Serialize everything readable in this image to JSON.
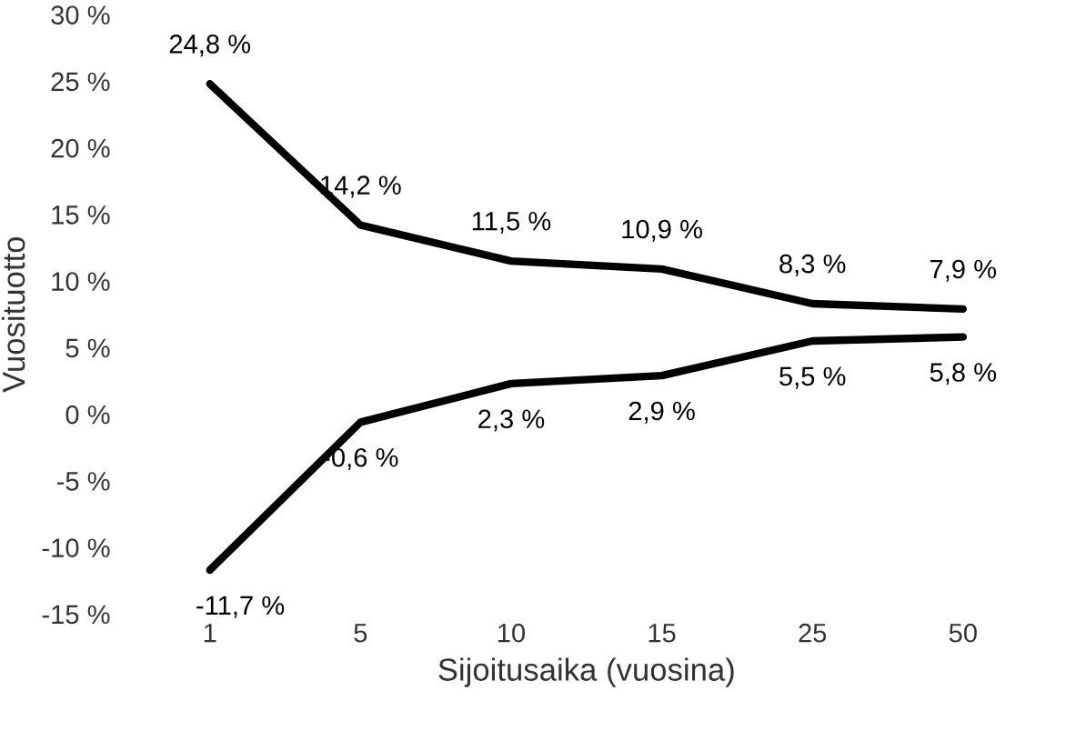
{
  "chart_data": {
    "type": "line",
    "xlabel": "Sijoitusaika (vuosina)",
    "ylabel": "Vuosituotto",
    "categories": [
      "1",
      "5",
      "10",
      "15",
      "25",
      "50"
    ],
    "series": [
      {
        "color": "#000000",
        "values": [
          24.8,
          14.2,
          11.5,
          10.9,
          8.3,
          7.9
        ],
        "value_labels": [
          "24,8 %",
          "14,2 %",
          "11,5 %",
          "10,9 %",
          "8,3 %",
          "7,9 %"
        ]
      },
      {
        "color": "#000000",
        "values": [
          -11.7,
          -0.6,
          2.3,
          2.9,
          5.5,
          5.8
        ],
        "value_labels": [
          "-11,7 %",
          "-0,6 %",
          "2,3 %",
          "2,9 %",
          "5,5 %",
          "5,8 %"
        ]
      }
    ],
    "ylim": [
      -15,
      30
    ],
    "yticks": [
      {
        "value": -15,
        "label": "-15 %"
      },
      {
        "value": -10,
        "label": "-10 %"
      },
      {
        "value": -5,
        "label": "-5 %"
      },
      {
        "value": 0,
        "label": "0 %"
      },
      {
        "value": 5,
        "label": "5 %"
      },
      {
        "value": 10,
        "label": "10 %"
      },
      {
        "value": 15,
        "label": "15 %"
      },
      {
        "value": 20,
        "label": "20 %"
      },
      {
        "value": 25,
        "label": "25 %"
      },
      {
        "value": 30,
        "label": "30 %"
      }
    ],
    "grid": false,
    "legend": false,
    "marker": "none",
    "line_style": "solid"
  }
}
